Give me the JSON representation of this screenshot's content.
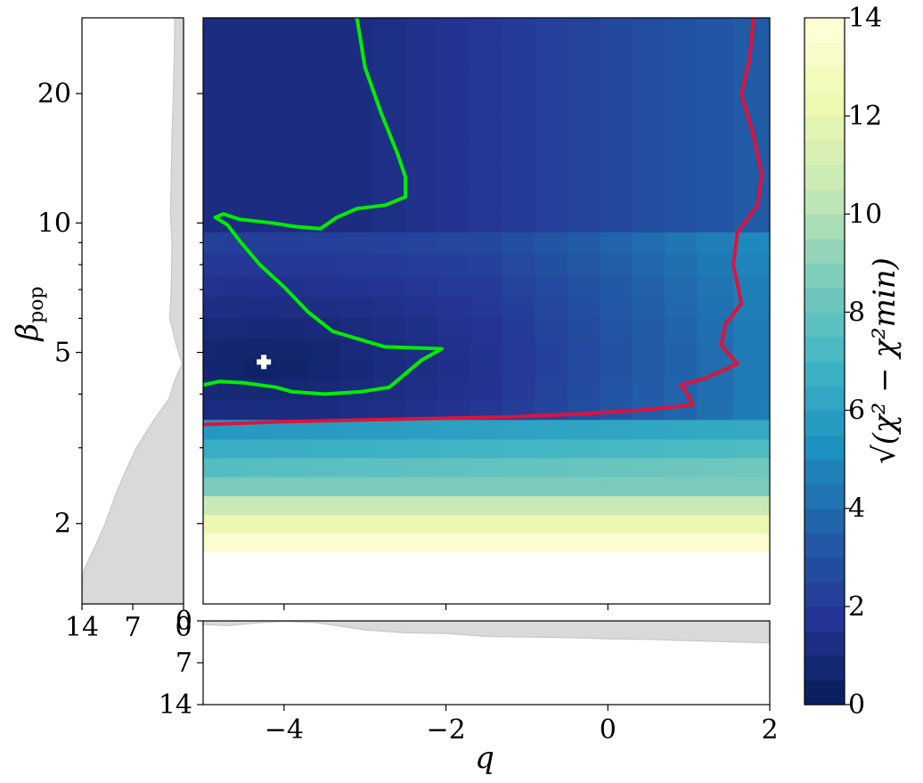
{
  "chart_data": {
    "type": "heatmap",
    "xlabel": "q",
    "ylabel": "β",
    "ylabel_sub": "pop",
    "x_range": [
      -5,
      2
    ],
    "y_range": [
      1.3,
      30
    ],
    "y_scale": "log",
    "x_ticks": [
      "−4",
      "−2",
      "0",
      "2"
    ],
    "x_tick_values": [
      -4,
      -2,
      0,
      2
    ],
    "y_ticks": [
      "2",
      "5",
      "10",
      "20"
    ],
    "y_tick_values": [
      2,
      5,
      10,
      20
    ],
    "colorbar": {
      "label": "√(χ² − χ²min)",
      "min": 0,
      "max": 14,
      "ticks": [
        "0",
        "2",
        "4",
        "6",
        "8",
        "10",
        "12",
        "14"
      ],
      "tick_values": [
        0,
        2,
        4,
        6,
        8,
        10,
        12,
        14
      ],
      "colormap": "YlGnBu_r"
    },
    "grid_q": [
      -4.9,
      -4.7,
      -4.3,
      -3.9,
      -3.5,
      -3.1,
      -2.7,
      -2.3,
      -1.9,
      -1.5,
      -1.1,
      -0.7,
      -0.3,
      0.1,
      0.5,
      0.9,
      1.3,
      1.8
    ],
    "grid_beta": [
      1.8,
      2.0,
      2.2,
      2.45,
      2.7,
      3.0,
      3.3,
      3.7,
      4.1,
      4.6,
      5.1,
      5.7,
      6.4,
      7.1,
      8.0,
      9.0,
      10.1,
      11.4,
      12.8,
      14.5,
      16.5,
      18.8,
      21.5,
      24.5,
      28.0
    ],
    "best_fit": {
      "q": -4.25,
      "beta": 4.75,
      "marker": "plus",
      "color": "#ffffff"
    },
    "contours": [
      {
        "color": "#00ee00",
        "points": [
          [
            -3.1,
            30
          ],
          [
            -3.0,
            23
          ],
          [
            -2.8,
            18
          ],
          [
            -2.6,
            14.5
          ],
          [
            -2.5,
            12.8
          ],
          [
            -2.5,
            11.5
          ],
          [
            -2.75,
            11
          ],
          [
            -3.1,
            10.8
          ],
          [
            -3.35,
            10.3
          ],
          [
            -3.55,
            9.7
          ],
          [
            -3.85,
            9.8
          ],
          [
            -4.15,
            10.0
          ],
          [
            -4.55,
            10.2
          ],
          [
            -4.75,
            10.5
          ],
          [
            -4.85,
            10.3
          ],
          [
            -4.7,
            9.9
          ],
          [
            -4.55,
            9.1
          ],
          [
            -4.3,
            8.0
          ],
          [
            -4.0,
            7.1
          ],
          [
            -3.7,
            6.2
          ],
          [
            -3.4,
            5.6
          ],
          [
            -3.05,
            5.35
          ],
          [
            -2.75,
            5.15
          ],
          [
            -2.35,
            5.12
          ],
          [
            -2.05,
            5.1
          ],
          [
            -2.3,
            4.8
          ],
          [
            -2.7,
            4.15
          ],
          [
            -3.05,
            4.05
          ],
          [
            -3.5,
            4.0
          ],
          [
            -3.9,
            4.05
          ],
          [
            -4.1,
            4.15
          ],
          [
            -4.5,
            4.25
          ],
          [
            -4.8,
            4.28
          ],
          [
            -5.0,
            4.2
          ]
        ]
      },
      {
        "color": "#dc143c",
        "points": [
          [
            1.8,
            30
          ],
          [
            1.75,
            24
          ],
          [
            1.65,
            20
          ],
          [
            1.8,
            16
          ],
          [
            1.9,
            13
          ],
          [
            1.85,
            11
          ],
          [
            1.6,
            9.5
          ],
          [
            1.55,
            8.0
          ],
          [
            1.65,
            6.5
          ],
          [
            1.45,
            5.8
          ],
          [
            1.4,
            5.2
          ],
          [
            1.6,
            4.7
          ],
          [
            1.2,
            4.35
          ],
          [
            0.9,
            4.2
          ],
          [
            1.0,
            3.95
          ],
          [
            1.05,
            3.78
          ],
          [
            0.5,
            3.68
          ],
          [
            -0.3,
            3.6
          ],
          [
            -1.2,
            3.54
          ],
          [
            -2.5,
            3.5
          ],
          [
            -4.0,
            3.45
          ],
          [
            -5.0,
            3.4
          ]
        ]
      }
    ],
    "marginal_beta": {
      "label_ticks": [
        "14",
        "7",
        "0"
      ],
      "tick_values": [
        14,
        7,
        0
      ],
      "beta": [
        30,
        24,
        20,
        16,
        13,
        10.5,
        9,
        7,
        6,
        5.2,
        4.7,
        4.3,
        3.9,
        3.5,
        3.0,
        2.6,
        2.3,
        2.0,
        1.8,
        1.55,
        1.3
      ],
      "value": [
        1.2,
        1.3,
        1.4,
        1.6,
        1.7,
        1.8,
        1.6,
        1.7,
        1.9,
        1.0,
        0.2,
        1.2,
        2.0,
        4.0,
        6.5,
        8.2,
        9.5,
        10.8,
        12.0,
        13.8,
        14.0
      ]
    },
    "marginal_q": {
      "label_ticks": [
        "0",
        "7",
        "14"
      ],
      "tick_values": [
        0,
        7,
        14
      ],
      "q": [
        -5,
        -4.7,
        -4.3,
        -4.0,
        -3.6,
        -3.0,
        -2.5,
        -2.0,
        -1.5,
        -1.0,
        -0.5,
        0,
        0.5,
        1.0,
        1.5,
        2.0
      ],
      "value": [
        0.6,
        0.8,
        0.3,
        0.1,
        0.3,
        1.5,
        2.0,
        2.1,
        2.6,
        2.7,
        2.8,
        3.0,
        3.1,
        3.3,
        3.5,
        3.7
      ]
    }
  }
}
